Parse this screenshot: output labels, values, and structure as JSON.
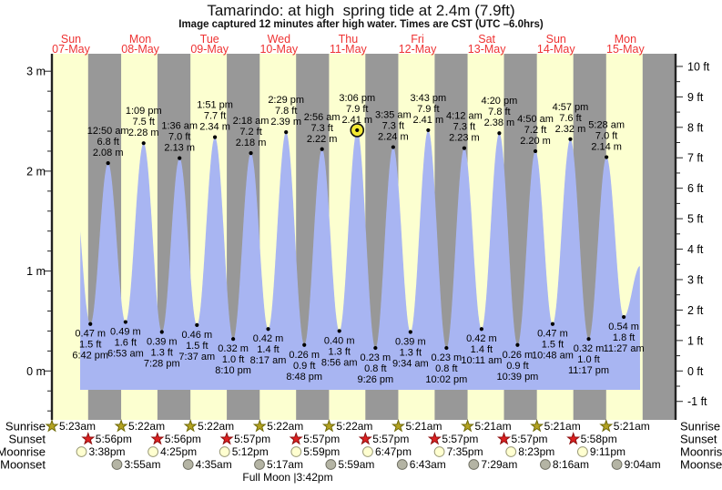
{
  "title": "Tamarindo: at high  spring tide at 2.4m (7.9ft)",
  "subtitle": "Image captured 12 minutes after high water. Times are CST (UTC –6.0hrs)",
  "colors": {
    "day_band": "#fcffd0",
    "night_band": "#989898",
    "tide_fill": "#a8b5f2",
    "day_label_red": "#ee3333",
    "axis": "#222222",
    "text": "#000000",
    "current_marker": "#f2e832",
    "sunrise_star_fill": "#b3a221",
    "sunrise_star_stroke": "#6f6a0a",
    "sunset_star_fill": "#dd2020",
    "sunset_star_stroke": "#8d0f0f",
    "moonrise_fill": "#ffffd0",
    "moonrise_stroke": "#9a9a78",
    "moonset_fill": "#b4b4a4",
    "moonset_stroke": "#6f6f63"
  },
  "chart_data": {
    "type": "area",
    "title": "Tamarindo: at high  spring tide at 2.4m (7.9ft)",
    "ylabel_left_unit": "m",
    "ylabel_right_unit": "ft",
    "ylim_m": [
      -0.5,
      3.17
    ],
    "y_left_ticks_m": [
      0,
      1,
      2,
      3
    ],
    "y_right_ticks_ft": [
      -1,
      0,
      1,
      2,
      3,
      4,
      5,
      6,
      7,
      8,
      9,
      10
    ],
    "grid": false,
    "legend": "none",
    "x_days": [
      {
        "name": "Sun",
        "date": "07-May"
      },
      {
        "name": "Mon",
        "date": "08-May"
      },
      {
        "name": "Tue",
        "date": "09-May"
      },
      {
        "name": "Wed",
        "date": "10-May"
      },
      {
        "name": "Thu",
        "date": "11-May"
      },
      {
        "name": "Fri",
        "date": "12-May"
      },
      {
        "name": "Sat",
        "date": "13-May"
      },
      {
        "name": "Sun",
        "date": "14-May"
      },
      {
        "name": "Mon",
        "date": "15-May"
      }
    ],
    "extremes": [
      {
        "day": 0,
        "time": "6:42 pm",
        "kind": "low",
        "height_m": "0.47 m",
        "height_ft": "1.5 ft"
      },
      {
        "day": 1,
        "time": "12:50 am",
        "kind": "high",
        "height_m": "2.08 m",
        "height_ft": "6.8 ft"
      },
      {
        "day": 1,
        "time": "6:53 am",
        "kind": "low",
        "height_m": "0.49 m",
        "height_ft": "1.6 ft"
      },
      {
        "day": 1,
        "time": "1:09 pm",
        "kind": "high",
        "height_m": "2.28 m",
        "height_ft": "7.5 ft"
      },
      {
        "day": 1,
        "time": "7:28 pm",
        "kind": "low",
        "height_m": "0.39 m",
        "height_ft": "1.3 ft"
      },
      {
        "day": 2,
        "time": "1:36 am",
        "kind": "high",
        "height_m": "2.13 m",
        "height_ft": "7.0 ft"
      },
      {
        "day": 2,
        "time": "7:37 am",
        "kind": "low",
        "height_m": "0.46 m",
        "height_ft": "1.5 ft"
      },
      {
        "day": 2,
        "time": "1:51 pm",
        "kind": "high",
        "height_m": "2.34 m",
        "height_ft": "7.7 ft"
      },
      {
        "day": 2,
        "time": "8:10 pm",
        "kind": "low",
        "height_m": "0.32 m",
        "height_ft": "1.0 ft"
      },
      {
        "day": 3,
        "time": "2:18 am",
        "kind": "high",
        "height_m": "2.18 m",
        "height_ft": "7.2 ft"
      },
      {
        "day": 3,
        "time": "8:17 am",
        "kind": "low",
        "height_m": "0.42 m",
        "height_ft": "1.4 ft"
      },
      {
        "day": 3,
        "time": "2:29 pm",
        "kind": "high",
        "height_m": "2.39 m",
        "height_ft": "7.8 ft"
      },
      {
        "day": 3,
        "time": "8:48 pm",
        "kind": "low",
        "height_m": "0.26 m",
        "height_ft": "0.9 ft"
      },
      {
        "day": 4,
        "time": "2:56 am",
        "kind": "high",
        "height_m": "2.22 m",
        "height_ft": "7.3 ft"
      },
      {
        "day": 4,
        "time": "8:56 am",
        "kind": "low",
        "height_m": "0.40 m",
        "height_ft": "1.3 ft"
      },
      {
        "day": 4,
        "time": "3:06 pm",
        "kind": "high",
        "height_m": "2.41 m",
        "height_ft": "7.9 ft",
        "current": true
      },
      {
        "day": 4,
        "time": "9:26 pm",
        "kind": "low",
        "height_m": "0.23 m",
        "height_ft": "0.8 ft"
      },
      {
        "day": 5,
        "time": "3:35 am",
        "kind": "high",
        "height_m": "2.24 m",
        "height_ft": "7.3 ft"
      },
      {
        "day": 5,
        "time": "9:34 am",
        "kind": "low",
        "height_m": "0.39 m",
        "height_ft": "1.3 ft"
      },
      {
        "day": 5,
        "time": "3:43 pm",
        "kind": "high",
        "height_m": "2.41 m",
        "height_ft": "7.9 ft"
      },
      {
        "day": 5,
        "time": "10:02 pm",
        "kind": "low",
        "height_m": "0.23 m",
        "height_ft": "0.8 ft"
      },
      {
        "day": 6,
        "time": "4:12 am",
        "kind": "high",
        "height_m": "2.23 m",
        "height_ft": "7.3 ft"
      },
      {
        "day": 6,
        "time": "10:11 am",
        "kind": "low",
        "height_m": "0.42 m",
        "height_ft": "1.4 ft"
      },
      {
        "day": 6,
        "time": "4:20 pm",
        "kind": "high",
        "height_m": "2.38 m",
        "height_ft": "7.8 ft"
      },
      {
        "day": 6,
        "time": "10:39 pm",
        "kind": "low",
        "height_m": "0.26 m",
        "height_ft": "0.9 ft"
      },
      {
        "day": 7,
        "time": "4:50 am",
        "kind": "high",
        "height_m": "2.20 m",
        "height_ft": "7.2 ft"
      },
      {
        "day": 7,
        "time": "10:48 am",
        "kind": "low",
        "height_m": "0.47 m",
        "height_ft": "1.5 ft"
      },
      {
        "day": 7,
        "time": "4:57 pm",
        "kind": "high",
        "height_m": "2.32 m",
        "height_ft": "7.6 ft"
      },
      {
        "day": 7,
        "time": "11:17 pm",
        "kind": "low",
        "height_m": "0.32 m",
        "height_ft": "1.0 ft"
      },
      {
        "day": 8,
        "time": "5:28 am",
        "kind": "high",
        "height_m": "2.14 m",
        "height_ft": "7.0 ft"
      },
      {
        "day": 8,
        "time": "11:27 am",
        "kind": "low",
        "height_m": "0.54 m",
        "height_ft": "1.8 ft"
      }
    ],
    "sun_moon": {
      "sunrise": {
        "label": "Sunrise",
        "times": [
          {
            "day": 0,
            "time": "5:23am"
          },
          {
            "day": 1,
            "time": "5:22am"
          },
          {
            "day": 2,
            "time": "5:22am"
          },
          {
            "day": 3,
            "time": "5:22am"
          },
          {
            "day": 4,
            "time": "5:22am"
          },
          {
            "day": 5,
            "time": "5:21am"
          },
          {
            "day": 6,
            "time": "5:21am"
          },
          {
            "day": 7,
            "time": "5:21am"
          },
          {
            "day": 8,
            "time": "5:21am"
          }
        ]
      },
      "sunset": {
        "label": "Sunset",
        "times": [
          {
            "day": 0,
            "time": "5:56pm"
          },
          {
            "day": 1,
            "time": "5:56pm"
          },
          {
            "day": 2,
            "time": "5:57pm"
          },
          {
            "day": 3,
            "time": "5:57pm"
          },
          {
            "day": 4,
            "time": "5:57pm"
          },
          {
            "day": 5,
            "time": "5:57pm"
          },
          {
            "day": 6,
            "time": "5:57pm"
          },
          {
            "day": 7,
            "time": "5:58pm"
          }
        ]
      },
      "moonrise": {
        "label": "Moonrise",
        "times": [
          {
            "day": 0,
            "time": "3:38pm"
          },
          {
            "day": 1,
            "time": "4:25pm"
          },
          {
            "day": 2,
            "time": "5:12pm"
          },
          {
            "day": 3,
            "time": "5:59pm"
          },
          {
            "day": 4,
            "time": "6:47pm"
          },
          {
            "day": 5,
            "time": "7:35pm"
          },
          {
            "day": 6,
            "time": "8:23pm"
          },
          {
            "day": 7,
            "time": "9:11pm"
          }
        ]
      },
      "moonset": {
        "label": "Moonset",
        "times": [
          {
            "day": 1,
            "time": "3:55am"
          },
          {
            "day": 2,
            "time": "4:35am"
          },
          {
            "day": 3,
            "time": "5:17am"
          },
          {
            "day": 4,
            "time": "5:59am"
          },
          {
            "day": 5,
            "time": "6:43am"
          },
          {
            "day": 6,
            "time": "7:29am"
          },
          {
            "day": 7,
            "time": "8:16am"
          },
          {
            "day": 8,
            "time": "9:04am"
          }
        ]
      },
      "full_moon": {
        "label": "Full Moon",
        "time": "3:42pm"
      }
    }
  }
}
